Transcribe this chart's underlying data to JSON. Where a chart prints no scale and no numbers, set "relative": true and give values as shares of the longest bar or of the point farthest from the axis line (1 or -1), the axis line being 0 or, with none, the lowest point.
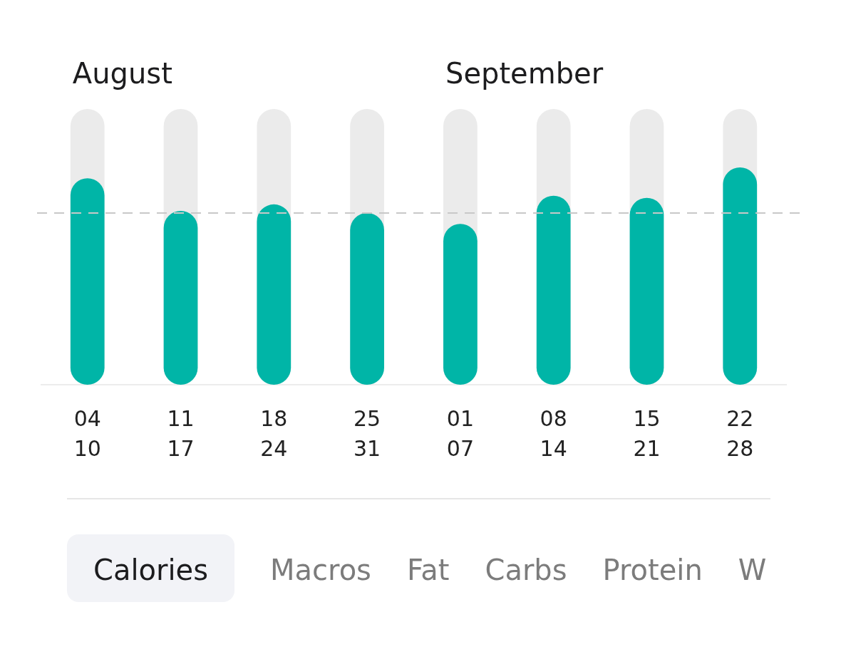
{
  "chart_data": {
    "type": "bar",
    "relative": true,
    "categories": [
      "04\n10",
      "11\n17",
      "18\n24",
      "25\n31",
      "01\n07",
      "08\n14",
      "15\n21",
      "22\n28"
    ],
    "values": [
      0.95,
      0.8,
      0.83,
      0.79,
      0.74,
      0.87,
      0.86,
      1
    ],
    "color": "#00b5a7",
    "ref_lines": [
      {
        "axis": "y",
        "value": 0.79,
        "color": "#c8c8c8",
        "line_style": "dashed"
      }
    ],
    "annotations": [
      "August",
      "September",
      "Calories",
      "Macros",
      "Fat",
      "Carbs",
      "Protein",
      "W"
    ]
  }
}
